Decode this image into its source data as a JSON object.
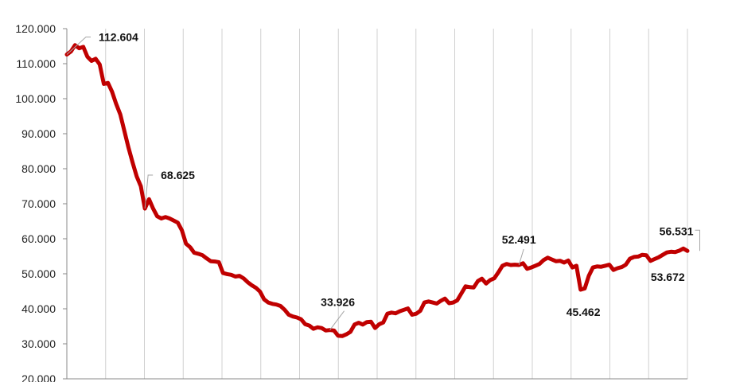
{
  "chart_data": {
    "type": "line",
    "title": "",
    "xlabel": "",
    "ylabel": "",
    "ylim": [
      20000,
      120000
    ],
    "yticks": [
      20000,
      30000,
      40000,
      50000,
      60000,
      70000,
      80000,
      90000,
      100000,
      110000,
      120000
    ],
    "ytick_labels": [
      "20.000",
      "30.000",
      "40.000",
      "50.000",
      "60.000",
      "70.000",
      "80.000",
      "90.000",
      "100.000",
      "110.000",
      "120.000"
    ],
    "x_gridlines": 16,
    "grid": "vertical",
    "line_color": "#c00000",
    "series": [
      {
        "values": [
          112604,
          113500,
          115300,
          114400,
          114800,
          112000,
          110800,
          111400,
          109800,
          104200,
          104500,
          102000,
          98500,
          95500,
          90800,
          86000,
          81800,
          77800,
          75000,
          68625,
          71300,
          68600,
          66400,
          65800,
          66200,
          65800,
          65200,
          64600,
          62400,
          58600,
          57600,
          56000,
          55700,
          55300,
          54400,
          53600,
          53500,
          53300,
          50200,
          49900,
          49700,
          49200,
          49400,
          48700,
          47600,
          46700,
          46000,
          44900,
          42700,
          41800,
          41400,
          41200,
          40800,
          39700,
          38300,
          37800,
          37500,
          37000,
          35600,
          35200,
          34300,
          34700,
          34500,
          33800,
          33926,
          33800,
          32300,
          32200,
          32700,
          33400,
          35500,
          36000,
          35500,
          36200,
          36300,
          34500,
          35600,
          36100,
          38600,
          38900,
          38700,
          39300,
          39700,
          40100,
          38300,
          38600,
          39400,
          41800,
          42100,
          41800,
          41500,
          42300,
          42900,
          41600,
          41800,
          42400,
          44400,
          46400,
          46200,
          46100,
          47900,
          48600,
          47200,
          48200,
          48700,
          50400,
          52300,
          52800,
          52500,
          52600,
          52491,
          53000,
          51400,
          51800,
          52300,
          52800,
          53900,
          54600,
          54100,
          53600,
          53700,
          53200,
          53800,
          51800,
          52300,
          45462,
          45800,
          49400,
          51800,
          52100,
          52000,
          52300,
          52600,
          51100,
          51600,
          51900,
          52600,
          54300,
          54800,
          54900,
          55400,
          55300,
          53672,
          54200,
          54700,
          55400,
          56100,
          56300,
          56200,
          56600,
          57200,
          56531
        ]
      }
    ],
    "annotations": [
      {
        "text": "112.604",
        "index": 0,
        "value": 112604
      },
      {
        "text": "68.625",
        "index": 19,
        "value": 68625
      },
      {
        "text": "33.926",
        "index": 64,
        "value": 33926
      },
      {
        "text": "52.491",
        "index": 110,
        "value": 52491
      },
      {
        "text": "45.462",
        "index": 125,
        "value": 45462
      },
      {
        "text": "53.672",
        "index": 144,
        "value": 53672
      },
      {
        "text": "56.531",
        "index": 154,
        "value": 56531
      }
    ]
  }
}
